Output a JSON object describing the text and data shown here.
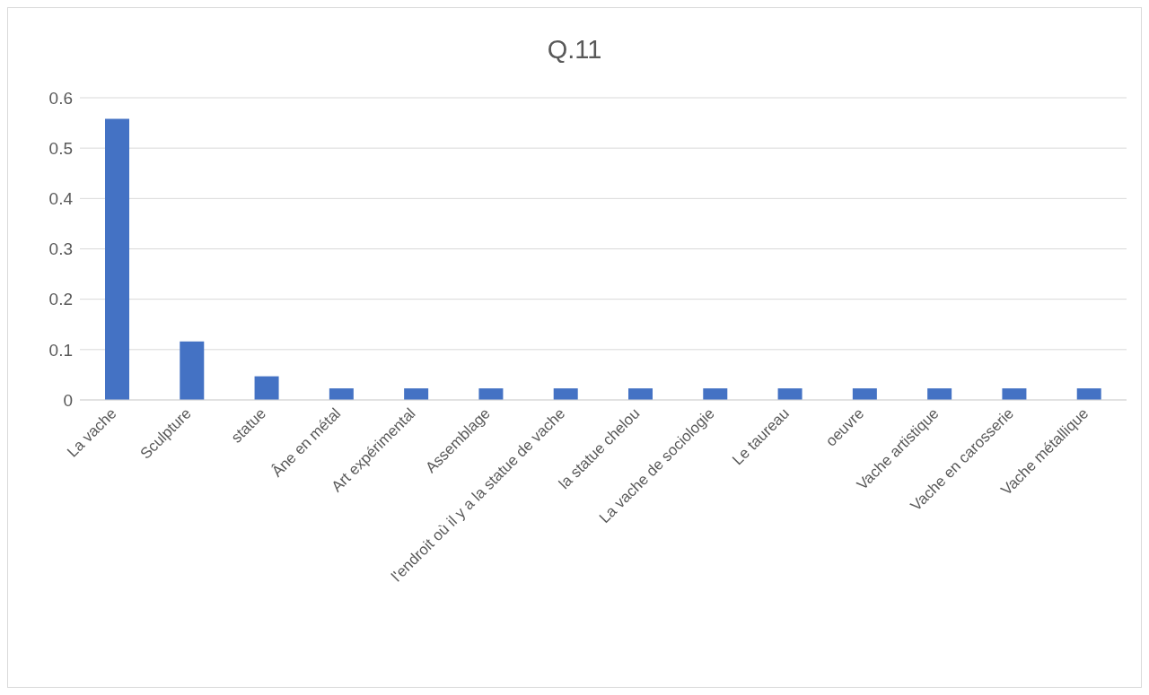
{
  "chart_data": {
    "type": "bar",
    "title": "Q.11",
    "categories": [
      "La vache",
      "Sculpture",
      "statue",
      "Âne en métal",
      "Art expérimental",
      "Assemblage",
      "l'endroit où il y a la statue de vache",
      "la statue chelou",
      "La vache de sociologie",
      "Le taureau",
      "oeuvre",
      "Vache artistique",
      "Vache en carosserie",
      "Vache métallique"
    ],
    "values": [
      0.558,
      0.116,
      0.047,
      0.023,
      0.023,
      0.023,
      0.023,
      0.023,
      0.023,
      0.023,
      0.023,
      0.023,
      0.023,
      0.023
    ],
    "color": "#4472c4",
    "ylim": [
      0,
      0.6
    ],
    "yticks": [
      0,
      0.1,
      0.2,
      0.3,
      0.4,
      0.5,
      0.6
    ],
    "grid": "y",
    "legend": false
  }
}
